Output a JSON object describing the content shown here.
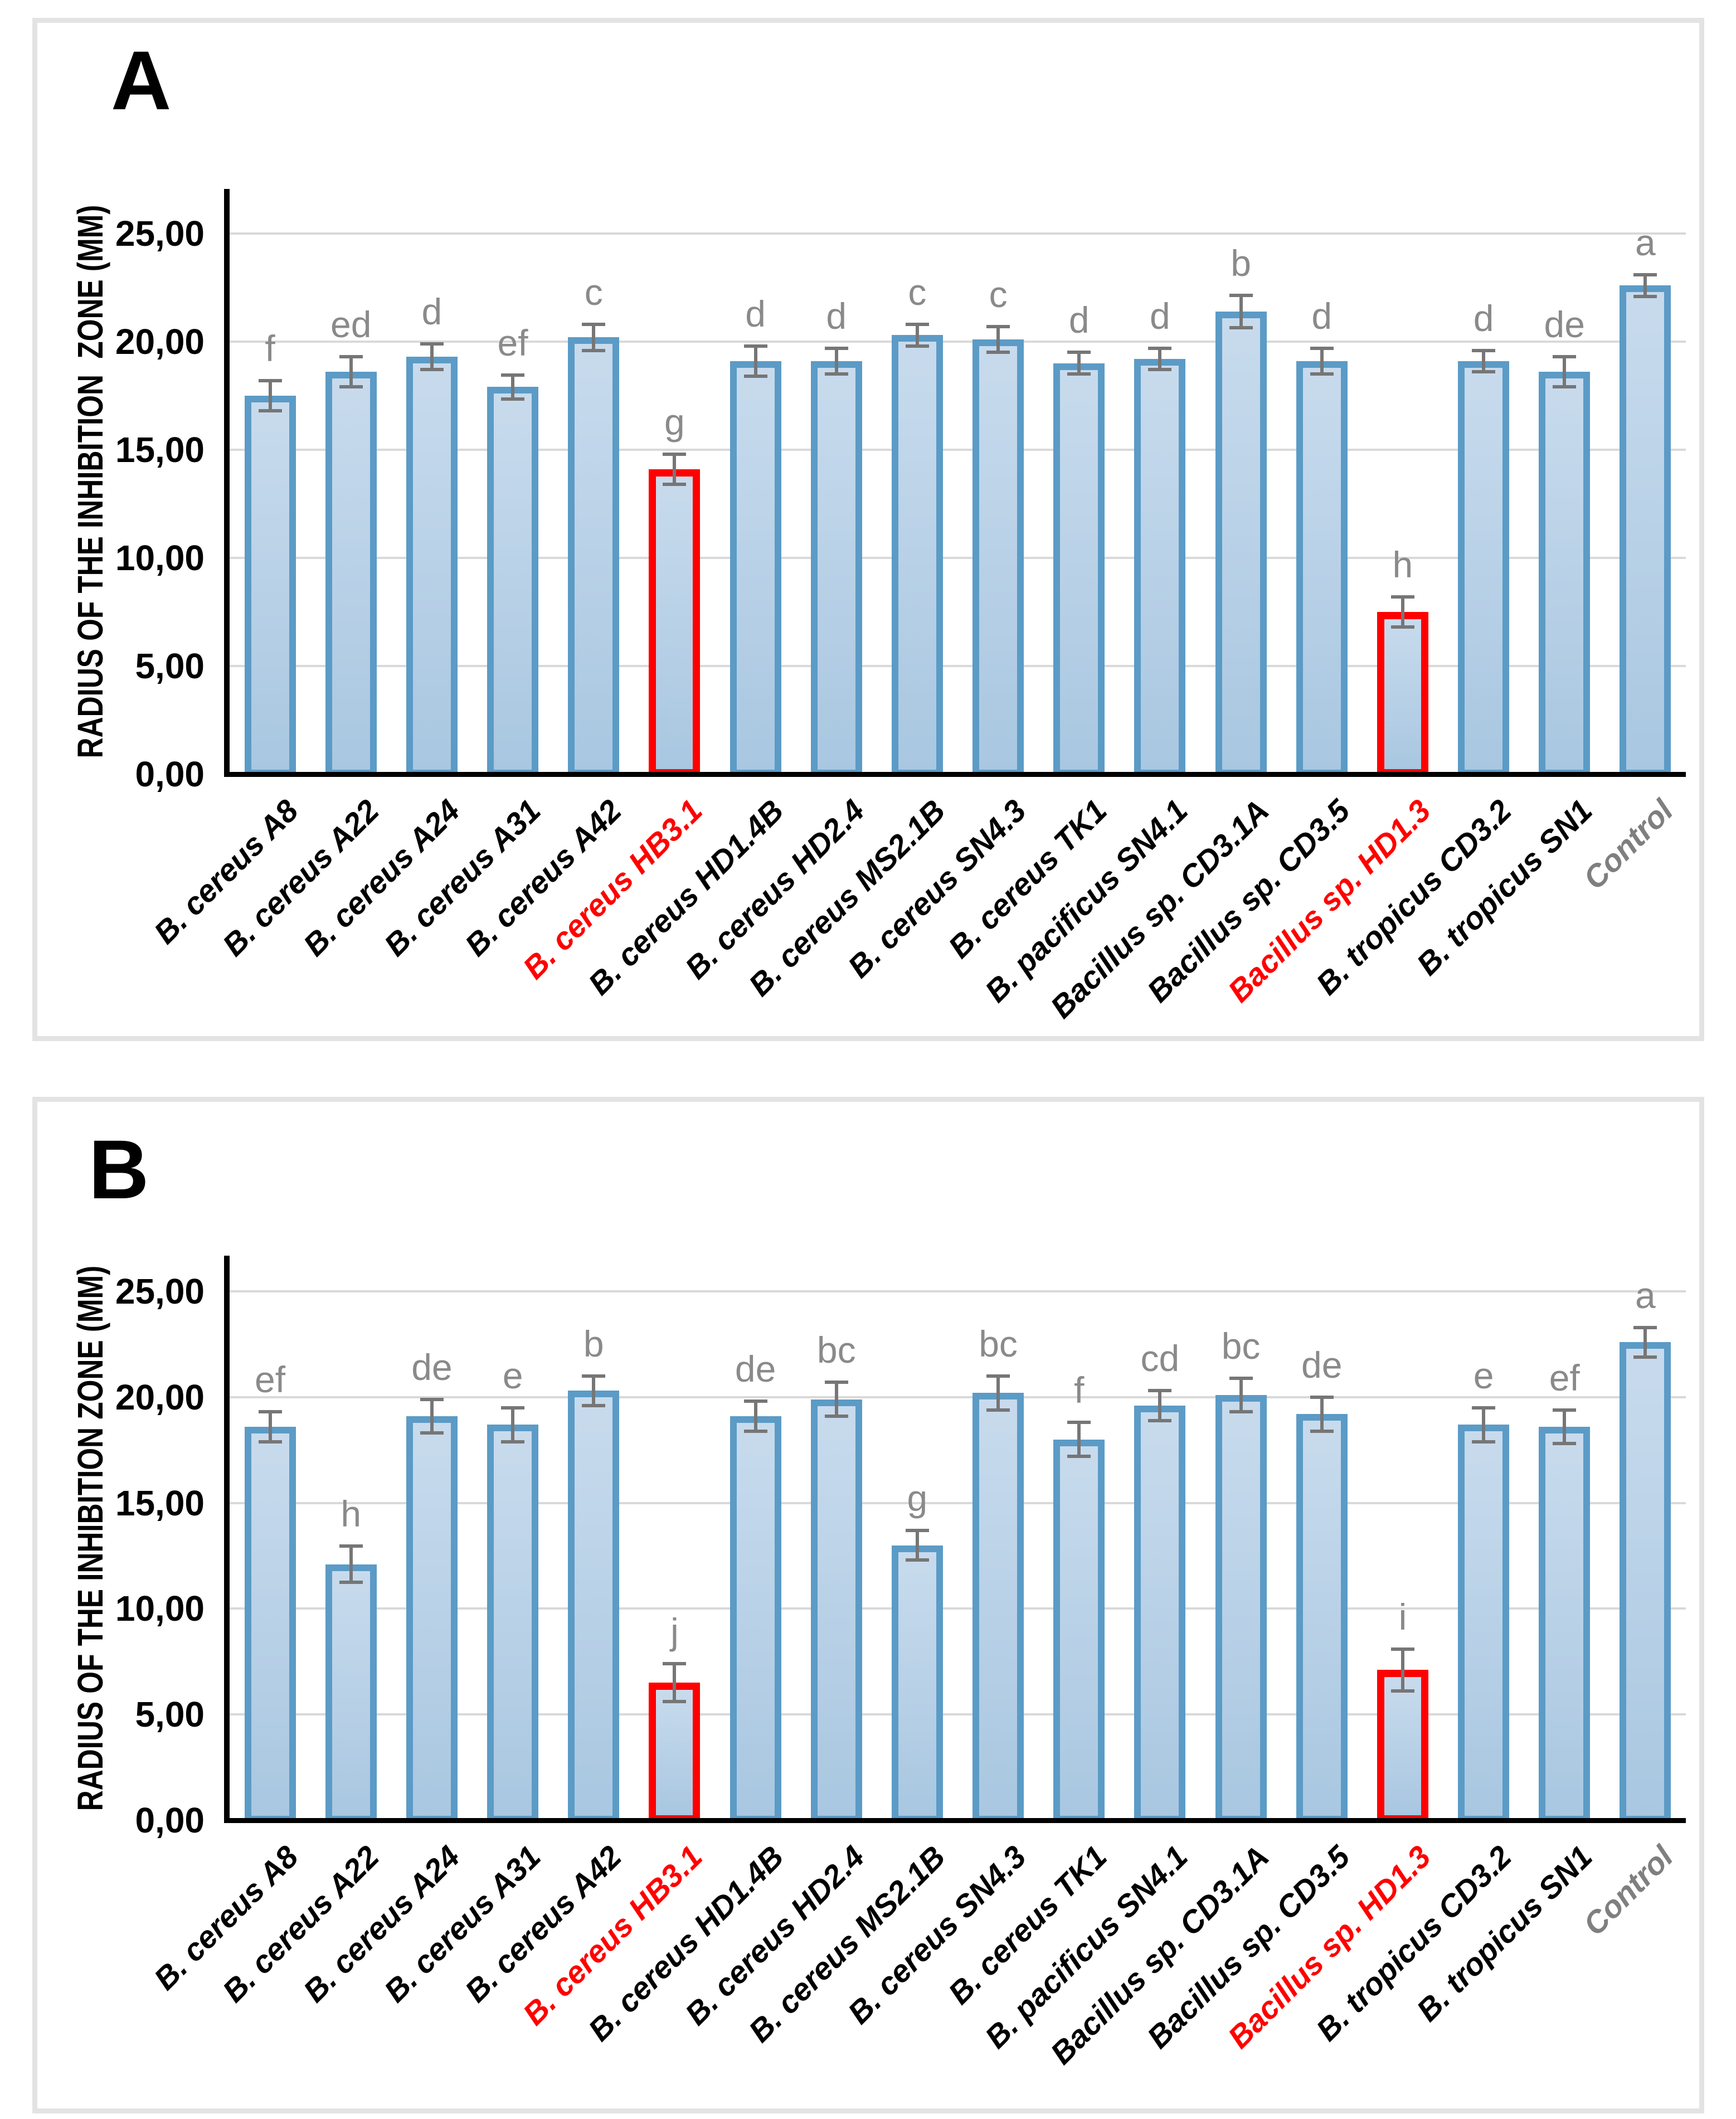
{
  "colors": {
    "bar_border": "#5b9bc6",
    "bar_fill_top": "#c8dbed",
    "bar_fill_bottom": "#a9c7e1",
    "highlight_border": "#ff0000",
    "error_bar": "#767676",
    "sig_letter": "#8a8a8a",
    "gridline": "#d9d9d9",
    "axis": "#000000",
    "tick_label": "#000000",
    "category_default": "#000000",
    "category_highlight": "#ff0000",
    "category_control": "#7f7f7f",
    "frame_border": "#e3e3e3"
  },
  "chart_data": [
    {
      "type": "bar",
      "panel_label": "A",
      "title": "",
      "xlabel": "",
      "ylabel": "RADIUS OF THE INHIBITION  ZONE (MM)",
      "ylim": [
        0,
        27
      ],
      "yticks": [
        0,
        5,
        10,
        15,
        20,
        25
      ],
      "ytick_labels": [
        "0,00",
        "5,00",
        "10,00",
        "15,00",
        "20,00",
        "25,00"
      ],
      "grid": true,
      "legend": false,
      "categories": [
        "B. cereus A8",
        "B. cereus A22",
        "B. cereus A24",
        "B. cereus A31",
        "B. cereus A42",
        "B. cereus HB3.1",
        "B. cereus HD1.4B",
        "B. cereus HD2.4",
        "B. cereus MS2.1B",
        "B. cereus SN4.3",
        "B. cereus TK1",
        "B. pacificus SN4.1",
        "Bacillus sp. CD3.1A",
        "Bacillus sp. CD3.5",
        "Bacillus sp. HD1.3",
        "B. tropicus CD3.2",
        "B. tropicus SN1",
        "Control"
      ],
      "values": [
        17.5,
        18.6,
        19.3,
        17.9,
        20.2,
        14.1,
        19.1,
        19.1,
        20.3,
        20.1,
        19.0,
        19.2,
        21.4,
        19.1,
        7.5,
        19.1,
        18.6,
        22.6
      ],
      "errors": [
        0.7,
        0.7,
        0.6,
        0.55,
        0.6,
        0.7,
        0.7,
        0.6,
        0.5,
        0.6,
        0.5,
        0.5,
        0.75,
        0.6,
        0.7,
        0.5,
        0.7,
        0.5
      ],
      "letters": [
        "f",
        "ed",
        "d",
        "ef",
        "c",
        "g",
        "d",
        "d",
        "c",
        "c",
        "d",
        "d",
        "b",
        "d",
        "h",
        "d",
        "de",
        "a"
      ],
      "highlighted_indices": [
        5,
        14
      ],
      "control_index": 17
    },
    {
      "type": "bar",
      "panel_label": "B",
      "title": "",
      "xlabel": "",
      "ylabel": "RADIUS OF THE INHIBITION ZONE (MM)",
      "ylim": [
        0,
        27
      ],
      "yticks": [
        0,
        5,
        10,
        15,
        20,
        25
      ],
      "ytick_labels": [
        "0,00",
        "5,00",
        "10,00",
        "15,00",
        "20,00",
        "25,00"
      ],
      "grid": true,
      "legend": false,
      "categories": [
        "B. cereus A8",
        "B. cereus A22",
        "B. cereus A24",
        "B. cereus A31",
        "B. cereus A42",
        "B. cereus HB3.1",
        "B. cereus HD1.4B",
        "B. cereus HD2.4",
        "B. cereus MS2.1B",
        "B. cereus SN4.3",
        "B. cereus TK1",
        "B. pacificus SN4.1",
        "Bacillus sp. CD3.1A",
        "Bacillus sp. CD3.5",
        "Bacillus sp. HD1.3",
        "B. tropicus CD3.2",
        "B. tropicus SN1",
        "Control"
      ],
      "values": [
        18.6,
        12.1,
        19.1,
        18.7,
        20.3,
        6.5,
        19.1,
        19.9,
        13.0,
        20.2,
        18.0,
        19.6,
        20.1,
        19.2,
        7.1,
        18.7,
        18.6,
        22.6
      ],
      "errors": [
        0.7,
        0.85,
        0.8,
        0.8,
        0.7,
        0.9,
        0.7,
        0.8,
        0.7,
        0.8,
        0.8,
        0.7,
        0.8,
        0.8,
        1.0,
        0.8,
        0.8,
        0.7
      ],
      "letters": [
        "ef",
        "h",
        "de",
        "e",
        "b",
        "j",
        "de",
        "bc",
        "g",
        "bc",
        "f",
        "cd",
        "bc",
        "de",
        "i",
        "e",
        "ef",
        "a"
      ],
      "highlighted_indices": [
        5,
        14
      ],
      "control_index": 17
    }
  ]
}
